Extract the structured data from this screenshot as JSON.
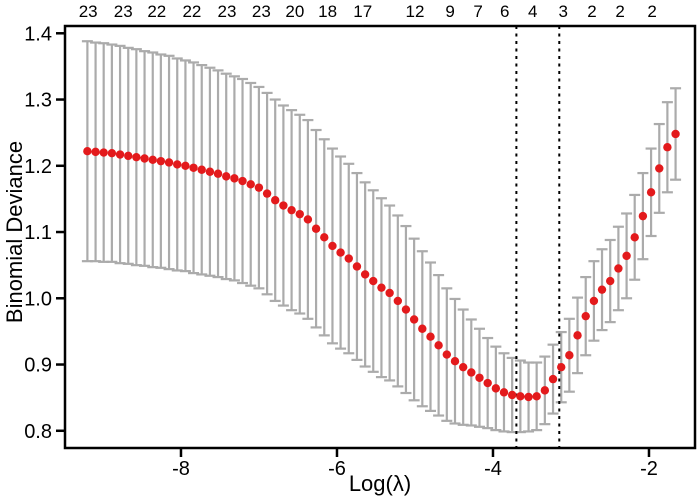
{
  "figure": {
    "background": "#ffffff"
  },
  "chart_data": {
    "type": "scatter",
    "subtype": "errorbar-cv-curve",
    "title": "",
    "xlabel": "Log(λ)",
    "ylabel": "Binomial Deviance",
    "xlim": [
      -9.487,
      -1.41
    ],
    "ylim": [
      0.774,
      1.411
    ],
    "grid": false,
    "legend_position": "none",
    "colors": {
      "point": "#e31a1c",
      "error_bar": "#ababab",
      "axis": "#000000",
      "vline": "#000000",
      "background": "#ffffff"
    },
    "x_ticks": [
      {
        "label": "-8",
        "value": -8
      },
      {
        "label": "-6",
        "value": -6
      },
      {
        "label": "-4",
        "value": -4
      },
      {
        "label": "-2",
        "value": -2
      }
    ],
    "y_ticks": [
      {
        "label": "1.4",
        "value": 1.4
      },
      {
        "label": "1.3",
        "value": 1.3
      },
      {
        "label": "1.2",
        "value": 1.2
      },
      {
        "label": "1.1",
        "value": 1.1
      },
      {
        "label": "1.0",
        "value": 1.0
      },
      {
        "label": "0.9",
        "value": 0.9
      },
      {
        "label": "0.8",
        "value": 0.8
      }
    ],
    "top_axis_labels": [
      {
        "label": "23",
        "value": -9.19
      },
      {
        "label": "23",
        "value": -8.74
      },
      {
        "label": "22",
        "value": -8.31
      },
      {
        "label": "22",
        "value": -7.86
      },
      {
        "label": "23",
        "value": -7.41
      },
      {
        "label": "23",
        "value": -6.97
      },
      {
        "label": "20",
        "value": -6.54
      },
      {
        "label": "18",
        "value": -6.12
      },
      {
        "label": "17",
        "value": -5.67
      },
      {
        "label": "12",
        "value": -5.0
      },
      {
        "label": "9",
        "value": -4.55
      },
      {
        "label": "7",
        "value": -4.19
      },
      {
        "label": "6",
        "value": -3.85
      },
      {
        "label": "4",
        "value": -3.49
      },
      {
        "label": "3",
        "value": -3.1
      },
      {
        "label": "2",
        "value": -2.73
      },
      {
        "label": "2",
        "value": -2.37
      },
      {
        "label": "2",
        "value": -1.96
      }
    ],
    "vlines": [
      {
        "name": "lambda-min",
        "value": -3.7,
        "style": "dashed"
      },
      {
        "name": "lambda-1se",
        "value": -3.15,
        "style": "dashed"
      }
    ],
    "series": [
      {
        "name": "cv-mean-binomial-deviance",
        "x": [
          -9.2,
          -9.095,
          -8.991,
          -8.886,
          -8.781,
          -8.676,
          -8.572,
          -8.467,
          -8.362,
          -8.258,
          -8.153,
          -8.048,
          -7.943,
          -7.839,
          -7.734,
          -7.629,
          -7.525,
          -7.42,
          -7.315,
          -7.211,
          -7.106,
          -7.001,
          -6.896,
          -6.792,
          -6.687,
          -6.582,
          -6.477,
          -6.373,
          -6.268,
          -6.163,
          -6.058,
          -5.954,
          -5.849,
          -5.744,
          -5.639,
          -5.535,
          -5.43,
          -5.325,
          -5.22,
          -5.116,
          -5.011,
          -4.906,
          -4.801,
          -4.697,
          -4.592,
          -4.487,
          -4.382,
          -4.278,
          -4.173,
          -4.068,
          -3.963,
          -3.859,
          -3.754,
          -3.649,
          -3.544,
          -3.44,
          -3.335,
          -3.23,
          -3.125,
          -3.021,
          -2.916,
          -2.811,
          -2.706,
          -2.602,
          -2.497,
          -2.392,
          -2.287,
          -2.183,
          -2.078,
          -1.973,
          -1.868,
          -1.764,
          -1.659
        ],
        "y": [
          1.222,
          1.221,
          1.22,
          1.219,
          1.217,
          1.215,
          1.213,
          1.211,
          1.209,
          1.207,
          1.205,
          1.202,
          1.2,
          1.197,
          1.194,
          1.191,
          1.188,
          1.184,
          1.181,
          1.177,
          1.172,
          1.167,
          1.158,
          1.148,
          1.14,
          1.133,
          1.127,
          1.119,
          1.105,
          1.092,
          1.079,
          1.069,
          1.06,
          1.048,
          1.036,
          1.026,
          1.016,
          1.008,
          0.996,
          0.983,
          0.968,
          0.954,
          0.942,
          0.929,
          0.915,
          0.905,
          0.896,
          0.888,
          0.88,
          0.872,
          0.864,
          0.858,
          0.854,
          0.852,
          0.851,
          0.852,
          0.861,
          0.878,
          0.896,
          0.914,
          0.944,
          0.973,
          0.996,
          1.013,
          1.026,
          1.045,
          1.064,
          1.092,
          1.124,
          1.16,
          1.196,
          1.228,
          1.248
        ],
        "se": [
          0.166,
          0.165,
          0.165,
          0.164,
          0.164,
          0.163,
          0.163,
          0.162,
          0.162,
          0.161,
          0.161,
          0.16,
          0.159,
          0.159,
          0.158,
          0.157,
          0.156,
          0.155,
          0.154,
          0.154,
          0.153,
          0.152,
          0.152,
          0.152,
          0.151,
          0.151,
          0.15,
          0.15,
          0.149,
          0.148,
          0.147,
          0.145,
          0.143,
          0.141,
          0.139,
          0.137,
          0.135,
          0.132,
          0.129,
          0.126,
          0.122,
          0.117,
          0.112,
          0.106,
          0.1,
          0.094,
          0.087,
          0.08,
          0.074,
          0.068,
          0.063,
          0.059,
          0.056,
          0.054,
          0.052,
          0.051,
          0.051,
          0.052,
          0.053,
          0.055,
          0.057,
          0.059,
          0.06,
          0.061,
          0.062,
          0.063,
          0.064,
          0.064,
          0.065,
          0.066,
          0.067,
          0.068,
          0.069
        ]
      }
    ]
  }
}
